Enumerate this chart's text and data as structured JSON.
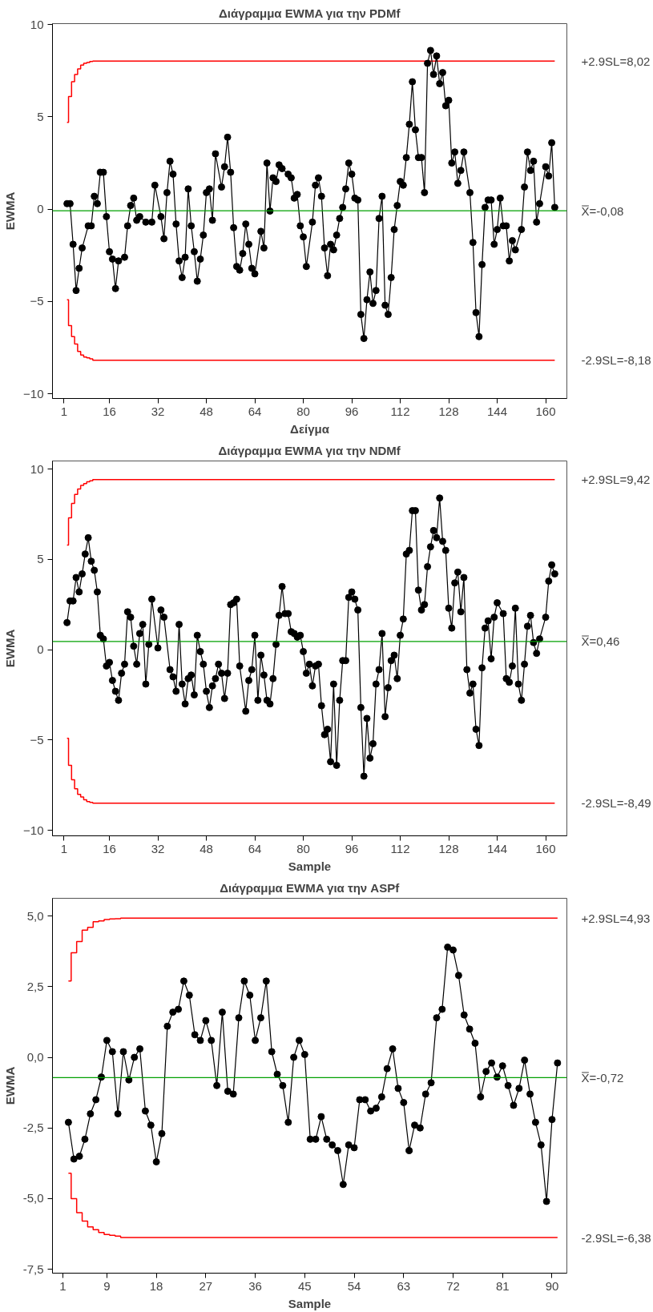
{
  "chart_data": [
    {
      "type": "line",
      "title": "Διάγραμμα EWMA για την PDMf",
      "xlabel": "Δείγμα",
      "ylabel": "EWMA",
      "marker": "circle",
      "grid": false,
      "xlim": [
        -2.8,
        167
      ],
      "ylim": [
        -10.25,
        10.05
      ],
      "xticks": [
        1,
        16,
        32,
        48,
        64,
        80,
        96,
        112,
        128,
        144,
        160
      ],
      "yticks": [
        -10,
        -5,
        0,
        5,
        10
      ],
      "ref_lines": [
        {
          "axis": "y",
          "value": -0.08,
          "label": "X̿=-0,08",
          "color": "#00a000"
        }
      ],
      "series": [
        {
          "type": "step",
          "marker": "none",
          "name": "+2.9SL=8,02",
          "color": "#ff0000",
          "x": [
            2,
            3,
            4,
            5,
            6,
            7,
            8,
            9,
            10,
            11,
            163
          ],
          "values": [
            4.7,
            6.1,
            6.9,
            7.3,
            7.6,
            7.8,
            7.9,
            7.95,
            8.0,
            8.02,
            8.02
          ]
        },
        {
          "type": "step",
          "marker": "none",
          "name": "-2.9SL=-8,18",
          "color": "#ff0000",
          "x": [
            2,
            3,
            4,
            5,
            6,
            7,
            8,
            9,
            10,
            11,
            163
          ],
          "values": [
            -4.9,
            -6.3,
            -6.9,
            -7.3,
            -7.7,
            -7.9,
            -8.0,
            -8.05,
            -8.1,
            -8.18,
            -8.18
          ]
        },
        {
          "color": "#000000",
          "x": [
            2,
            3,
            4,
            5,
            6,
            7,
            9,
            10,
            11,
            12,
            13,
            14,
            15,
            16,
            17,
            18,
            19,
            21,
            22,
            23,
            24,
            25,
            26,
            28,
            30,
            31,
            33,
            34,
            35,
            36,
            37,
            38,
            39,
            40,
            41,
            42,
            43,
            44,
            45,
            46,
            47,
            48,
            49,
            50,
            51,
            53,
            54,
            55,
            56,
            57,
            58,
            59,
            60,
            61,
            62,
            63,
            64,
            66,
            67,
            68,
            69,
            70,
            71,
            72,
            73,
            75,
            76,
            77,
            78,
            79,
            80,
            81,
            83,
            84,
            85,
            86,
            87,
            88,
            89,
            90,
            91,
            92,
            93,
            94,
            95,
            96,
            97,
            98,
            99,
            100,
            101,
            102,
            103,
            104,
            105,
            106,
            107,
            108,
            109,
            110,
            111,
            112,
            113,
            114,
            115,
            116,
            117,
            118,
            119,
            120,
            121,
            122,
            123,
            124,
            125,
            126,
            127,
            128,
            129,
            130,
            131,
            132,
            133,
            135,
            136,
            137,
            138,
            139,
            140,
            141,
            142,
            143,
            144,
            145,
            146,
            147,
            148,
            149,
            150,
            152,
            153,
            154,
            155,
            156,
            157,
            158,
            160,
            161,
            162,
            163
          ],
          "values": [
            0.3,
            0.3,
            -1.9,
            -4.4,
            -3.2,
            -2.1,
            -0.9,
            -0.9,
            0.7,
            0.3,
            2.0,
            2.0,
            -0.4,
            -2.3,
            -2.7,
            -4.3,
            -2.8,
            -2.6,
            -0.9,
            0.2,
            0.6,
            -0.6,
            -0.4,
            -0.7,
            -0.7,
            1.3,
            -0.4,
            -1.6,
            0.9,
            2.6,
            1.9,
            -0.8,
            -2.8,
            -3.7,
            -2.6,
            1.1,
            -0.9,
            -2.3,
            -3.9,
            -2.7,
            -1.4,
            0.9,
            1.1,
            -0.6,
            3.0,
            1.2,
            2.3,
            3.9,
            2.0,
            -1.0,
            -3.1,
            -3.3,
            -2.4,
            -0.8,
            -1.9,
            -3.2,
            -3.5,
            -1.2,
            -2.1,
            2.5,
            -0.1,
            1.7,
            1.5,
            2.4,
            2.2,
            1.9,
            1.7,
            0.6,
            0.8,
            -0.9,
            -1.5,
            -3.1,
            -0.7,
            1.3,
            1.7,
            0.7,
            -2.1,
            -3.6,
            -1.9,
            -2.2,
            -1.4,
            -0.5,
            0.1,
            1.1,
            2.5,
            1.9,
            0.6,
            0.5,
            -5.7,
            -7.0,
            -4.9,
            -3.4,
            -5.1,
            -4.4,
            -0.5,
            0.7,
            -5.2,
            -5.7,
            -3.7,
            -1.1,
            0.2,
            1.5,
            1.3,
            2.8,
            4.6,
            6.9,
            4.3,
            2.8,
            2.8,
            0.9,
            7.9,
            8.6,
            7.3,
            8.3,
            6.8,
            7.4,
            5.6,
            5.9,
            2.5,
            3.1,
            1.4,
            2.1,
            3.1,
            0.9,
            -1.8,
            -5.6,
            -6.9,
            -3.0,
            0.1,
            0.5,
            0.5,
            -1.9,
            -1.1,
            0.6,
            -0.9,
            -0.9,
            -2.8,
            -1.7,
            -2.2,
            -1.1,
            1.2,
            3.1,
            2.1,
            2.6,
            -0.7,
            0.3,
            2.3,
            1.8,
            3.6,
            0.1
          ]
        }
      ]
    },
    {
      "type": "line",
      "title": "Διάγραμμα EWMA για την NDMf",
      "xlabel": "Sample",
      "ylabel": "EWMA",
      "marker": "circle",
      "grid": false,
      "xlim": [
        -2.8,
        167
      ],
      "ylim": [
        -10.3,
        10.45
      ],
      "xticks": [
        1,
        16,
        32,
        48,
        64,
        80,
        96,
        112,
        128,
        144,
        160
      ],
      "yticks": [
        -10,
        -5,
        0,
        5,
        10
      ],
      "ref_lines": [
        {
          "axis": "y",
          "value": 0.46,
          "label": "X̿=0,46",
          "color": "#00a000"
        }
      ],
      "series": [
        {
          "type": "step",
          "marker": "none",
          "name": "+2.9SL=9,42",
          "color": "#ff0000",
          "x": [
            2,
            3,
            4,
            5,
            6,
            7,
            8,
            9,
            10,
            11,
            163
          ],
          "values": [
            5.8,
            7.3,
            8.1,
            8.6,
            8.9,
            9.1,
            9.2,
            9.3,
            9.35,
            9.42,
            9.42
          ]
        },
        {
          "type": "step",
          "marker": "none",
          "name": "-2.9SL=-8,49",
          "color": "#ff0000",
          "x": [
            2,
            3,
            4,
            5,
            6,
            7,
            8,
            9,
            10,
            11,
            163
          ],
          "values": [
            -4.9,
            -6.4,
            -7.2,
            -7.7,
            -8.0,
            -8.15,
            -8.3,
            -8.4,
            -8.45,
            -8.49,
            -8.49
          ]
        },
        {
          "color": "#000000",
          "x": [
            2,
            3,
            4,
            5,
            6,
            7,
            8,
            9,
            10,
            11,
            12,
            13,
            14,
            15,
            16,
            17,
            18,
            19,
            20,
            21,
            22,
            23,
            24,
            25,
            26,
            27,
            28,
            29,
            30,
            32,
            33,
            34,
            36,
            37,
            38,
            39,
            40,
            41,
            42,
            43,
            44,
            45,
            46,
            47,
            48,
            49,
            50,
            51,
            52,
            53,
            54,
            55,
            56,
            57,
            58,
            59,
            61,
            62,
            63,
            64,
            65,
            66,
            67,
            68,
            69,
            70,
            71,
            72,
            73,
            74,
            75,
            76,
            77,
            78,
            79,
            80,
            81,
            82,
            83,
            84,
            85,
            86,
            87,
            88,
            89,
            90,
            91,
            92,
            93,
            94,
            95,
            96,
            97,
            98,
            99,
            100,
            101,
            102,
            103,
            104,
            105,
            106,
            107,
            108,
            109,
            110,
            111,
            112,
            113,
            114,
            115,
            116,
            117,
            118,
            119,
            120,
            121,
            122,
            123,
            124,
            125,
            126,
            127,
            128,
            129,
            130,
            131,
            132,
            133,
            134,
            135,
            136,
            137,
            138,
            139,
            140,
            141,
            142,
            143,
            144,
            146,
            147,
            148,
            149,
            150,
            151,
            152,
            153,
            154,
            155,
            156,
            157,
            158,
            160,
            161,
            162,
            163
          ],
          "values": [
            1.5,
            2.7,
            2.7,
            4.0,
            3.2,
            4.2,
            5.3,
            6.2,
            4.9,
            4.4,
            3.2,
            0.8,
            0.6,
            -0.9,
            -0.7,
            -1.7,
            -2.3,
            -2.8,
            -1.3,
            -0.8,
            2.1,
            1.8,
            0.2,
            -0.8,
            0.9,
            1.4,
            -1.9,
            0.3,
            2.8,
            0.1,
            2.2,
            1.8,
            -1.1,
            -1.5,
            -2.3,
            1.4,
            -1.9,
            -3.0,
            -1.6,
            -1.4,
            -2.5,
            0.8,
            -0.1,
            -0.8,
            -2.3,
            -3.2,
            -2.0,
            -1.6,
            -0.8,
            -1.3,
            -2.7,
            -1.3,
            2.5,
            2.6,
            2.8,
            -0.9,
            -3.4,
            -1.7,
            -1.1,
            0.8,
            -2.8,
            -0.3,
            -1.4,
            -2.8,
            -3.0,
            -1.6,
            0.3,
            1.9,
            3.5,
            2.0,
            2.0,
            1.0,
            0.9,
            0.7,
            0.8,
            -0.1,
            -1.3,
            -0.8,
            -2.0,
            -0.9,
            -0.8,
            -3.1,
            -4.7,
            -4.4,
            -6.2,
            -1.9,
            -6.4,
            -2.8,
            -0.6,
            -0.6,
            2.9,
            3.2,
            2.8,
            2.2,
            -3.2,
            -7.0,
            -3.8,
            -6.0,
            -5.2,
            -1.9,
            -1.1,
            0.9,
            -3.7,
            -2.1,
            -0.6,
            -0.3,
            -1.6,
            0.8,
            1.7,
            5.3,
            5.5,
            7.7,
            7.7,
            3.3,
            2.2,
            2.5,
            4.6,
            5.7,
            6.6,
            6.2,
            8.4,
            6.0,
            5.5,
            2.3,
            1.2,
            3.7,
            4.3,
            2.1,
            4.0,
            -1.1,
            -2.4,
            -1.9,
            -4.4,
            -5.3,
            -1.0,
            1.2,
            1.6,
            -0.5,
            1.8,
            2.6,
            2.0,
            -1.6,
            -1.8,
            -0.9,
            2.3,
            -1.9,
            -2.8,
            -0.8,
            1.3,
            1.9,
            0.4,
            -0.2,
            0.6,
            1.8,
            3.8,
            4.7,
            4.2
          ]
        }
      ]
    },
    {
      "type": "line",
      "title": "Διάγραμμα EWMA για την ASPf",
      "xlabel": "Sample",
      "ylabel": "EWMA",
      "marker": "circle",
      "grid": false,
      "xlim": [
        -0.9,
        92.7
      ],
      "ylim": [
        -7.64,
        5.63
      ],
      "xticks": [
        1,
        9,
        18,
        27,
        36,
        45,
        54,
        63,
        72,
        81,
        90
      ],
      "yticks": [
        {
          "value": -7.5,
          "label": "-7,5"
        },
        {
          "value": -5,
          "label": "-5,0"
        },
        {
          "value": -2.5,
          "label": "-2,5"
        },
        {
          "value": 0,
          "label": "0,0"
        },
        {
          "value": 2.5,
          "label": "2,5"
        },
        {
          "value": 5,
          "label": "5,0"
        }
      ],
      "ref_lines": [
        {
          "axis": "y",
          "value": -0.72,
          "label": "X̿=-0,72",
          "color": "#00a000"
        }
      ],
      "series": [
        {
          "type": "step",
          "marker": "none",
          "name": "+2.9SL=4,93",
          "color": "#ff0000",
          "x": [
            2,
            3,
            4,
            5,
            6,
            7,
            8,
            9,
            10,
            11,
            12,
            91
          ],
          "values": [
            2.7,
            3.7,
            4.1,
            4.5,
            4.6,
            4.8,
            4.83,
            4.88,
            4.9,
            4.91,
            4.93,
            4.93
          ]
        },
        {
          "type": "step",
          "marker": "none",
          "name": "-2.9SL=-6,38",
          "color": "#ff0000",
          "x": [
            2,
            3,
            4,
            5,
            6,
            7,
            8,
            9,
            10,
            11,
            12,
            91
          ],
          "values": [
            -4.1,
            -5.0,
            -5.5,
            -5.8,
            -6.0,
            -6.1,
            -6.2,
            -6.27,
            -6.3,
            -6.33,
            -6.38,
            -6.38
          ]
        },
        {
          "color": "#000000",
          "x": [
            2,
            3,
            4,
            5,
            6,
            7,
            8,
            9,
            10,
            11,
            12,
            13,
            14,
            15,
            16,
            17,
            18,
            19,
            20,
            21,
            22,
            23,
            24,
            25,
            26,
            27,
            28,
            29,
            30,
            31,
            32,
            33,
            34,
            35,
            36,
            37,
            38,
            39,
            40,
            41,
            42,
            43,
            44,
            45,
            46,
            47,
            48,
            49,
            50,
            51,
            52,
            53,
            54,
            55,
            56,
            57,
            58,
            59,
            60,
            61,
            62,
            63,
            64,
            65,
            66,
            67,
            68,
            69,
            70,
            71,
            72,
            73,
            74,
            75,
            76,
            77,
            78,
            79,
            80,
            81,
            82,
            83,
            84,
            85,
            86,
            87,
            88,
            89,
            90,
            91
          ],
          "values": [
            -2.3,
            -3.6,
            -3.5,
            -2.9,
            -2.0,
            -1.5,
            -0.7,
            0.6,
            0.2,
            -2.0,
            0.2,
            -0.8,
            0.0,
            0.3,
            -1.9,
            -2.4,
            -3.7,
            -2.7,
            1.1,
            1.6,
            1.7,
            2.7,
            2.2,
            0.8,
            0.6,
            1.3,
            0.6,
            -1.0,
            1.6,
            -1.2,
            -1.3,
            1.4,
            2.7,
            2.2,
            0.6,
            1.4,
            2.7,
            0.2,
            -0.6,
            -1.0,
            -2.3,
            0.0,
            0.6,
            0.1,
            -2.9,
            -2.9,
            -2.1,
            -2.9,
            -3.1,
            -3.3,
            -4.5,
            -3.1,
            -3.2,
            -1.5,
            -1.5,
            -1.9,
            -1.8,
            -1.4,
            -0.4,
            0.3,
            -1.1,
            -1.6,
            -3.3,
            -2.4,
            -2.5,
            -1.3,
            -0.9,
            1.4,
            1.7,
            3.9,
            3.8,
            2.9,
            1.5,
            1.0,
            0.5,
            -1.4,
            -0.5,
            -0.2,
            -0.7,
            -0.3,
            -1.0,
            -1.7,
            -1.1,
            -0.1,
            -1.3,
            -2.3,
            -3.1,
            -5.1,
            -2.2,
            -0.2
          ]
        }
      ]
    }
  ]
}
